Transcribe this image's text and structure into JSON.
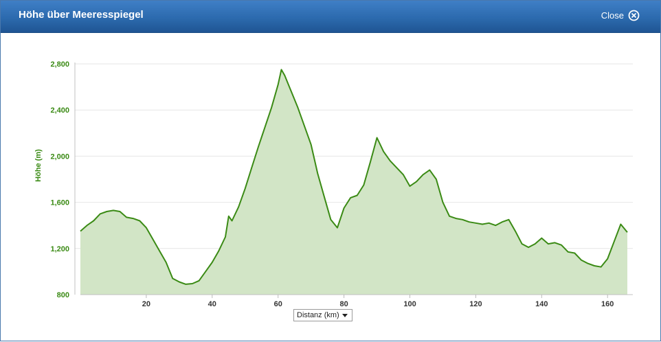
{
  "dialog": {
    "title": "Höhe über Meeresspiegel",
    "close_label": "Close"
  },
  "colors": {
    "header": "#2c6aae",
    "line": "#3a8a14",
    "fill": "#d2e5c6",
    "axis_label": "#3a8a14"
  },
  "chart_data": {
    "type": "area",
    "title": "",
    "xlabel": "Distanz (km)",
    "ylabel": "Höhe (m)",
    "xlim": [
      0,
      166
    ],
    "ylim": [
      800,
      2800
    ],
    "x_ticks": [
      "20",
      "40",
      "60",
      "80",
      "100",
      "120",
      "140",
      "160"
    ],
    "y_ticks": [
      "800",
      "1,200",
      "1,600",
      "2,000",
      "2,400",
      "2,800"
    ],
    "grid": "horizontal",
    "series": [
      {
        "x": [
          0,
          2,
          4,
          6,
          8,
          10,
          12,
          14,
          16,
          18,
          20,
          22,
          24,
          26,
          28,
          30,
          32,
          34,
          36,
          38,
          40,
          42,
          44,
          45,
          46,
          48,
          50,
          52,
          54,
          56,
          58,
          60,
          61,
          62,
          64,
          66,
          68,
          70,
          72,
          74,
          76,
          78,
          80,
          82,
          84,
          86,
          88,
          90,
          92,
          94,
          96,
          98,
          100,
          102,
          104,
          106,
          108,
          110,
          112,
          114,
          116,
          118,
          120,
          122,
          124,
          126,
          128,
          130,
          132,
          134,
          136,
          138,
          140,
          142,
          144,
          146,
          148,
          150,
          152,
          154,
          156,
          158,
          160,
          162,
          164,
          166
        ],
        "y": [
          1350,
          1400,
          1440,
          1500,
          1520,
          1530,
          1520,
          1470,
          1460,
          1440,
          1380,
          1280,
          1180,
          1080,
          940,
          910,
          890,
          895,
          920,
          1000,
          1080,
          1180,
          1300,
          1480,
          1440,
          1560,
          1720,
          1900,
          2080,
          2250,
          2420,
          2620,
          2750,
          2700,
          2560,
          2420,
          2260,
          2100,
          1850,
          1650,
          1450,
          1380,
          1550,
          1640,
          1660,
          1750,
          1950,
          2160,
          2040,
          1960,
          1900,
          1840,
          1740,
          1780,
          1840,
          1880,
          1800,
          1600,
          1480,
          1460,
          1450,
          1430,
          1420,
          1410,
          1420,
          1400,
          1430,
          1450,
          1350,
          1240,
          1210,
          1240,
          1290,
          1240,
          1250,
          1230,
          1170,
          1160,
          1100,
          1070,
          1050,
          1040,
          1110,
          1260,
          1410,
          1340
        ]
      }
    ]
  }
}
